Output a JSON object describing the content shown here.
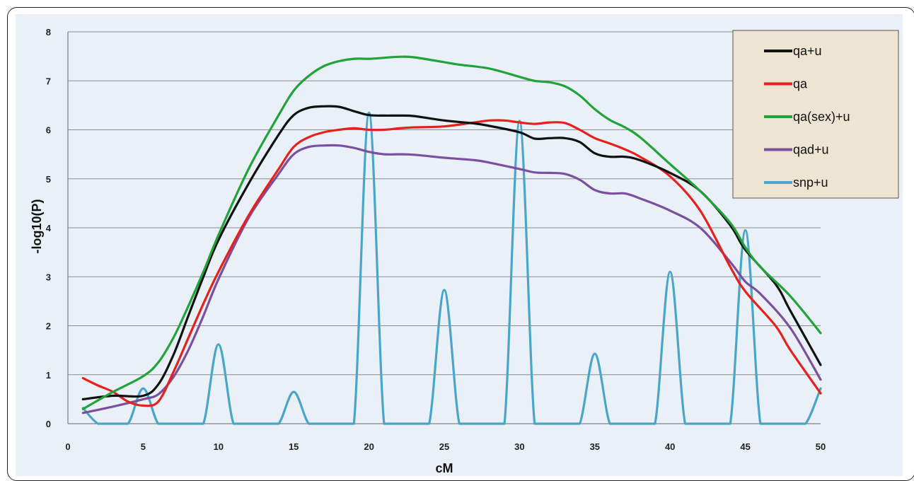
{
  "chart_data": {
    "type": "line",
    "title": "",
    "xlabel": "cM",
    "ylabel": "-log10(P)",
    "xlim": [
      0,
      50
    ],
    "ylim": [
      0,
      8
    ],
    "xticks": [
      0,
      5,
      10,
      15,
      20,
      25,
      30,
      35,
      40,
      45,
      50
    ],
    "yticks": [
      0,
      1,
      2,
      3,
      4,
      5,
      6,
      7,
      8
    ],
    "grid": "horizontal",
    "legend_position": "top-right",
    "series": [
      {
        "name": "qa+u",
        "color": "#111111",
        "x": [
          1,
          3,
          5,
          6,
          7,
          8,
          9,
          10,
          12,
          14,
          15,
          16,
          17,
          18,
          19,
          20,
          21,
          22,
          23,
          25,
          27,
          28,
          30,
          31,
          32,
          33,
          34,
          35,
          36,
          37,
          38,
          40,
          42,
          44,
          45,
          47,
          48,
          50
        ],
        "y": [
          0.5,
          0.57,
          0.57,
          0.8,
          1.4,
          2.2,
          3.0,
          3.75,
          4.9,
          5.9,
          6.3,
          6.45,
          6.48,
          6.47,
          6.38,
          6.3,
          6.29,
          6.29,
          6.28,
          6.19,
          6.13,
          6.08,
          5.95,
          5.82,
          5.83,
          5.83,
          5.75,
          5.52,
          5.45,
          5.45,
          5.38,
          5.12,
          4.75,
          4.05,
          3.55,
          2.85,
          2.3,
          1.2
        ]
      },
      {
        "name": "qa",
        "color": "#e8201c",
        "x": [
          1,
          2,
          3,
          4,
          5,
          6,
          7,
          8,
          9,
          10,
          12,
          14,
          15,
          16,
          17,
          18,
          19,
          20,
          21,
          22,
          23,
          25,
          27,
          28,
          29,
          30,
          31,
          32,
          33,
          34,
          35,
          36,
          37,
          38,
          40,
          42,
          44,
          45,
          47,
          48,
          50
        ],
        "y": [
          0.93,
          0.78,
          0.65,
          0.45,
          0.37,
          0.45,
          1.05,
          1.75,
          2.45,
          3.1,
          4.25,
          5.2,
          5.65,
          5.85,
          5.95,
          6.0,
          6.03,
          6.0,
          6.0,
          6.03,
          6.05,
          6.07,
          6.15,
          6.19,
          6.19,
          6.15,
          6.12,
          6.15,
          6.14,
          6.0,
          5.83,
          5.72,
          5.6,
          5.45,
          5.05,
          4.35,
          3.2,
          2.7,
          2.0,
          1.5,
          0.62
        ]
      },
      {
        "name": "qa(sex)+u",
        "color": "#22a33a",
        "x": [
          1,
          3,
          5,
          6,
          7,
          8,
          9,
          10,
          12,
          14,
          15,
          16,
          17,
          18,
          19,
          20,
          21,
          22,
          23,
          25,
          26,
          28,
          30,
          31,
          32,
          33,
          34,
          35,
          36,
          37,
          38,
          40,
          42,
          44,
          45,
          46,
          48,
          50
        ],
        "y": [
          0.3,
          0.65,
          0.97,
          1.25,
          1.75,
          2.4,
          3.1,
          3.85,
          5.2,
          6.3,
          6.8,
          7.1,
          7.3,
          7.4,
          7.45,
          7.45,
          7.47,
          7.49,
          7.48,
          7.38,
          7.33,
          7.25,
          7.08,
          7.0,
          6.97,
          6.89,
          6.7,
          6.42,
          6.2,
          6.05,
          5.85,
          5.3,
          4.75,
          4.1,
          3.6,
          3.2,
          2.6,
          1.85
        ]
      },
      {
        "name": "qad+u",
        "color": "#7b4fa0",
        "x": [
          1,
          3,
          5,
          6,
          7,
          8,
          9,
          10,
          12,
          14,
          15,
          16,
          17,
          18,
          19,
          20,
          21,
          22,
          23,
          25,
          27,
          28,
          30,
          31,
          32,
          33,
          34,
          35,
          36,
          37,
          38,
          40,
          42,
          44,
          45,
          46,
          48,
          50
        ],
        "y": [
          0.22,
          0.35,
          0.5,
          0.6,
          0.95,
          1.5,
          2.2,
          2.95,
          4.2,
          5.1,
          5.5,
          5.65,
          5.68,
          5.68,
          5.63,
          5.55,
          5.5,
          5.5,
          5.49,
          5.43,
          5.38,
          5.33,
          5.2,
          5.13,
          5.12,
          5.1,
          4.98,
          4.77,
          4.7,
          4.7,
          4.6,
          4.35,
          4.0,
          3.3,
          2.9,
          2.65,
          1.95,
          0.9
        ]
      },
      {
        "name": "snp+u",
        "color": "#4aa6c8",
        "x": [
          1,
          2,
          3,
          4,
          5,
          6,
          7,
          8,
          9,
          10,
          11,
          12,
          13,
          14,
          15,
          16,
          17,
          18,
          19,
          20,
          21,
          22,
          23,
          24,
          25,
          26,
          27,
          28,
          29,
          30,
          31,
          32,
          33,
          34,
          35,
          36,
          37,
          38,
          39,
          40,
          41,
          42,
          43,
          44,
          45,
          46,
          47,
          48,
          49,
          50
        ],
        "y": [
          0.32,
          0,
          0,
          0,
          0.72,
          0,
          0,
          0,
          0,
          1.62,
          0,
          0,
          0,
          0,
          0.65,
          0,
          0,
          0,
          0,
          6.35,
          0,
          0,
          0,
          0,
          2.73,
          0,
          0,
          0,
          0,
          6.18,
          0,
          0,
          0,
          0,
          1.43,
          0,
          0,
          0,
          0,
          3.1,
          0,
          0,
          0,
          0,
          3.95,
          0,
          0,
          0,
          0,
          0.72
        ]
      }
    ]
  }
}
